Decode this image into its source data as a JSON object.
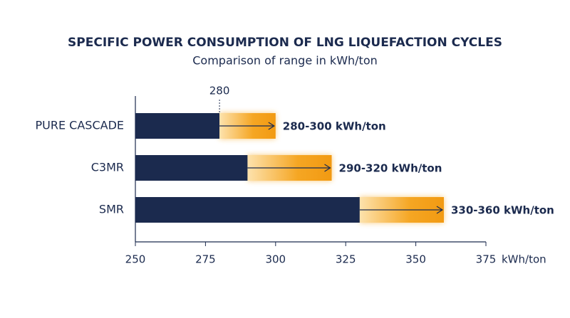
{
  "chart_data": {
    "type": "range-bar",
    "title": "SPECIFIC POWER CONSUMPTION OF LNG LIQUEFACTION CYCLES",
    "subtitle": "Comparison of range in kWh/ton",
    "categories": [
      "PURE CASCADE",
      "C3MR",
      "SMR"
    ],
    "low": [
      280,
      290,
      330
    ],
    "high": [
      300,
      320,
      360
    ],
    "value_labels": [
      "280-300 kWh/ton",
      "290-320 kWh/ton",
      "330-360 kWh/ton"
    ],
    "annotation": 280,
    "xlabel": "kWh/ton",
    "xlim": [
      250,
      375
    ],
    "xticks": [
      250,
      275,
      300,
      325,
      350,
      375
    ],
    "low_color": "#1b2a4e",
    "high_color": "#f5a623"
  }
}
